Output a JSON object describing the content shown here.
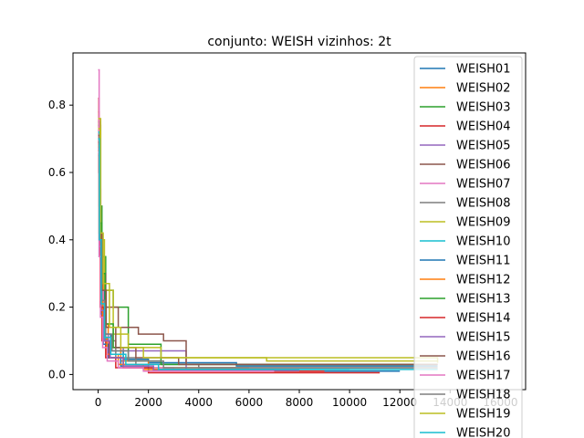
{
  "chart_data": {
    "type": "line",
    "title": "conjunto: WEISH vizinhos: 2t",
    "xlabel": "",
    "ylabel": "",
    "xlim": [
      -1000,
      17000
    ],
    "ylim": [
      -0.045,
      0.955
    ],
    "x_ticks": [
      0,
      2000,
      4000,
      6000,
      8000,
      10000,
      12000,
      14000,
      16000
    ],
    "x_tick_labels": [
      "0",
      "2000",
      "4000",
      "6000",
      "8000",
      "10000",
      "12000",
      "14000",
      "16000"
    ],
    "y_ticks": [
      0.0,
      0.2,
      0.4,
      0.6,
      0.8
    ],
    "y_tick_labels": [
      "0.0",
      "0.2",
      "0.4",
      "0.6",
      "0.8"
    ],
    "grid": false,
    "legend_position": "upper-right",
    "series": [
      {
        "name": "WEISH01",
        "color": "#1f77b4",
        "x": [
          0,
          50,
          120,
          250,
          500,
          1000,
          2000,
          5500,
          13500
        ],
        "y": [
          0.7,
          0.45,
          0.25,
          0.12,
          0.07,
          0.045,
          0.035,
          0.025,
          0.025
        ]
      },
      {
        "name": "WEISH02",
        "color": "#ff7f0e",
        "x": [
          0,
          40,
          100,
          200,
          400,
          900,
          2000,
          6000
        ],
        "y": [
          0.78,
          0.5,
          0.3,
          0.15,
          0.08,
          0.04,
          0.02,
          0.02
        ]
      },
      {
        "name": "WEISH03",
        "color": "#2ca02c",
        "x": [
          0,
          60,
          150,
          300,
          600,
          1200,
          2500,
          13500
        ],
        "y": [
          0.75,
          0.5,
          0.35,
          0.25,
          0.2,
          0.09,
          0.03,
          0.03
        ]
      },
      {
        "name": "WEISH04",
        "color": "#d62728",
        "x": [
          0,
          30,
          80,
          150,
          300,
          700,
          2000,
          11200
        ],
        "y": [
          0.82,
          0.6,
          0.2,
          0.1,
          0.05,
          0.02,
          0.005,
          0.005
        ]
      },
      {
        "name": "WEISH05",
        "color": "#9467bd",
        "x": [
          0,
          50,
          100,
          200,
          400,
          1000,
          2500,
          3500,
          4500
        ],
        "y": [
          0.72,
          0.4,
          0.2,
          0.12,
          0.08,
          0.07,
          0.07,
          0.01,
          0.01
        ]
      },
      {
        "name": "WEISH06",
        "color": "#8c564b",
        "x": [
          0,
          100,
          300,
          800,
          1600,
          2600,
          3500,
          13500
        ],
        "y": [
          0.74,
          0.3,
          0.2,
          0.14,
          0.12,
          0.1,
          0.03,
          0.03
        ]
      },
      {
        "name": "WEISH07",
        "color": "#e377c2",
        "x": [
          0,
          40,
          100,
          200,
          400,
          900,
          3000,
          6000
        ],
        "y": [
          0.905,
          0.55,
          0.25,
          0.1,
          0.05,
          0.02,
          0.01,
          0.01
        ]
      },
      {
        "name": "WEISH08",
        "color": "#7f7f7f",
        "x": [
          0,
          60,
          150,
          300,
          700,
          1500,
          4000,
          13500
        ],
        "y": [
          0.66,
          0.4,
          0.2,
          0.1,
          0.05,
          0.03,
          0.02,
          0.02
        ]
      },
      {
        "name": "WEISH09",
        "color": "#bcbd22",
        "x": [
          0,
          100,
          250,
          600,
          1200,
          2500,
          6700,
          13500
        ],
        "y": [
          0.76,
          0.4,
          0.25,
          0.12,
          0.08,
          0.05,
          0.04,
          0.04
        ]
      },
      {
        "name": "WEISH10",
        "color": "#17becf",
        "x": [
          0,
          50,
          120,
          250,
          500,
          1000,
          2000,
          13500
        ],
        "y": [
          0.72,
          0.38,
          0.2,
          0.1,
          0.06,
          0.03,
          0.015,
          0.015
        ]
      },
      {
        "name": "WEISH11",
        "color": "#1f77b4",
        "x": [
          0,
          40,
          100,
          200,
          400,
          900,
          2000,
          12000
        ],
        "y": [
          0.65,
          0.35,
          0.18,
          0.09,
          0.05,
          0.025,
          0.01,
          0.01
        ]
      },
      {
        "name": "WEISH12",
        "color": "#ff7f0e",
        "x": [
          0,
          40,
          90,
          180,
          350,
          800,
          1800,
          8000
        ],
        "y": [
          0.68,
          0.42,
          0.22,
          0.11,
          0.06,
          0.03,
          0.015,
          0.015
        ]
      },
      {
        "name": "WEISH13",
        "color": "#2ca02c",
        "x": [
          0,
          60,
          140,
          280,
          600,
          1200,
          2500,
          13500
        ],
        "y": [
          0.7,
          0.45,
          0.3,
          0.15,
          0.08,
          0.04,
          0.03,
          0.03
        ]
      },
      {
        "name": "WEISH14",
        "color": "#d62728",
        "x": [
          0,
          40,
          100,
          220,
          450,
          1000,
          2200,
          9000
        ],
        "y": [
          0.69,
          0.4,
          0.2,
          0.1,
          0.05,
          0.02,
          0.01,
          0.01
        ]
      },
      {
        "name": "WEISH15",
        "color": "#9467bd",
        "x": [
          0,
          50,
          110,
          230,
          480,
          1000,
          2200,
          8000
        ],
        "y": [
          0.67,
          0.38,
          0.19,
          0.1,
          0.05,
          0.025,
          0.012,
          0.012
        ]
      },
      {
        "name": "WEISH16",
        "color": "#8c564b",
        "x": [
          0,
          60,
          150,
          320,
          700,
          1500,
          3200,
          13500
        ],
        "y": [
          0.71,
          0.42,
          0.25,
          0.14,
          0.08,
          0.05,
          0.03,
          0.03
        ]
      },
      {
        "name": "WEISH17",
        "color": "#e377c2",
        "x": [
          0,
          40,
          90,
          180,
          360,
          800,
          1800,
          7000
        ],
        "y": [
          0.66,
          0.35,
          0.17,
          0.08,
          0.04,
          0.02,
          0.01,
          0.01
        ]
      },
      {
        "name": "WEISH18",
        "color": "#7f7f7f",
        "x": [
          0,
          50,
          120,
          260,
          550,
          1200,
          2600,
          13500
        ],
        "y": [
          0.68,
          0.4,
          0.22,
          0.12,
          0.07,
          0.04,
          0.02,
          0.02
        ]
      },
      {
        "name": "WEISH19",
        "color": "#bcbd22",
        "x": [
          0,
          80,
          200,
          450,
          900,
          1800,
          5500,
          13500
        ],
        "y": [
          0.73,
          0.42,
          0.27,
          0.14,
          0.08,
          0.05,
          0.05,
          0.035
        ]
      },
      {
        "name": "WEISH20",
        "color": "#17becf",
        "x": [
          0,
          50,
          120,
          250,
          500,
          1100,
          2400,
          10000
        ],
        "y": [
          0.7,
          0.4,
          0.21,
          0.11,
          0.06,
          0.03,
          0.015,
          0.015
        ]
      }
    ]
  }
}
